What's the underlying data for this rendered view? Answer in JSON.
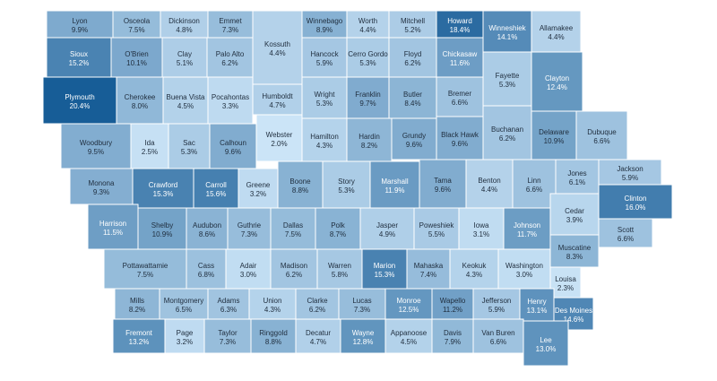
{
  "map": {
    "counties": [
      {
        "name": "Lyon",
        "value": "9.9%"
      },
      {
        "name": "Osceola",
        "value": "7.5%"
      },
      {
        "name": "Dickinson",
        "value": "4.8%"
      },
      {
        "name": "Emmet",
        "value": "7.3%"
      },
      {
        "name": "Kossuth",
        "value": "4.4%"
      },
      {
        "name": "Winnebago",
        "value": "8.9%"
      },
      {
        "name": "Worth",
        "value": "4.4%"
      },
      {
        "name": "Mitchell",
        "value": "5.2%"
      },
      {
        "name": "Howard",
        "value": "18.4%"
      },
      {
        "name": "Winneshiek",
        "value": "14.1%"
      },
      {
        "name": "Allamakee",
        "value": "4.4%"
      },
      {
        "name": "Sioux",
        "value": "15.2%"
      },
      {
        "name": "O'Brien",
        "value": "10.1%"
      },
      {
        "name": "Clay",
        "value": "5.1%"
      },
      {
        "name": "Palo Alto",
        "value": "6.2%"
      },
      {
        "name": "Hancock",
        "value": "5.9%"
      },
      {
        "name": "Cerro Gordo",
        "value": "5.3%"
      },
      {
        "name": "Floyd",
        "value": "6.2%"
      },
      {
        "name": "Chickasaw",
        "value": "11.6%"
      },
      {
        "name": "Fayette",
        "value": "5.3%"
      },
      {
        "name": "Clayton",
        "value": "12.4%"
      },
      {
        "name": "Plymouth",
        "value": "20.4%"
      },
      {
        "name": "Cherokee",
        "value": "8.0%"
      },
      {
        "name": "Buena Vista",
        "value": "4.5%"
      },
      {
        "name": "Pocahontas",
        "value": "3.3%"
      },
      {
        "name": "Humboldt",
        "value": "4.7%"
      },
      {
        "name": "Wright",
        "value": "5.3%"
      },
      {
        "name": "Franklin",
        "value": "9.7%"
      },
      {
        "name": "Butler",
        "value": "8.4%"
      },
      {
        "name": "Bremer",
        "value": "6.6%"
      },
      {
        "name": "Woodbury",
        "value": "9.5%"
      },
      {
        "name": "Ida",
        "value": "2.5%"
      },
      {
        "name": "Sac",
        "value": "5.3%"
      },
      {
        "name": "Calhoun",
        "value": "9.6%"
      },
      {
        "name": "Webster",
        "value": "2.0%"
      },
      {
        "name": "Hamilton",
        "value": "4.3%"
      },
      {
        "name": "Hardin",
        "value": "8.2%"
      },
      {
        "name": "Grundy",
        "value": "9.6%"
      },
      {
        "name": "Black Hawk",
        "value": "9.6%"
      },
      {
        "name": "Buchanan",
        "value": "6.2%"
      },
      {
        "name": "Delaware",
        "value": "10.9%"
      },
      {
        "name": "Dubuque",
        "value": "6.6%"
      },
      {
        "name": "Monona",
        "value": "9.3%"
      },
      {
        "name": "Crawford",
        "value": "15.3%"
      },
      {
        "name": "Carroll",
        "value": "15.6%"
      },
      {
        "name": "Greene",
        "value": "3.2%"
      },
      {
        "name": "Boone",
        "value": "8.8%"
      },
      {
        "name": "Story",
        "value": "5.3%"
      },
      {
        "name": "Marshall",
        "value": "11.9%"
      },
      {
        "name": "Tama",
        "value": "9.6%"
      },
      {
        "name": "Benton",
        "value": "4.4%"
      },
      {
        "name": "Linn",
        "value": "6.6%"
      },
      {
        "name": "Jones",
        "value": "6.1%"
      },
      {
        "name": "Jackson",
        "value": "5.9%"
      },
      {
        "name": "Clinton",
        "value": "16.0%"
      },
      {
        "name": "Harrison",
        "value": "11.5%"
      },
      {
        "name": "Shelby",
        "value": "10.9%"
      },
      {
        "name": "Audubon",
        "value": "8.6%"
      },
      {
        "name": "Guthrie",
        "value": "7.3%"
      },
      {
        "name": "Dallas",
        "value": "7.5%"
      },
      {
        "name": "Polk",
        "value": "8.7%"
      },
      {
        "name": "Jasper",
        "value": "4.9%"
      },
      {
        "name": "Poweshiek",
        "value": "5.5%"
      },
      {
        "name": "Iowa",
        "value": "3.1%"
      },
      {
        "name": "Johnson",
        "value": "11.7%"
      },
      {
        "name": "Cedar",
        "value": "3.9%"
      },
      {
        "name": "Scott",
        "value": "6.6%"
      },
      {
        "name": "Muscatine",
        "value": "8.3%"
      },
      {
        "name": "Pottawattamie",
        "value": "7.5%"
      },
      {
        "name": "Cass",
        "value": "6.8%"
      },
      {
        "name": "Adair",
        "value": "3.0%"
      },
      {
        "name": "Madison",
        "value": "6.2%"
      },
      {
        "name": "Warren",
        "value": "5.8%"
      },
      {
        "name": "Marion",
        "value": "15.3%"
      },
      {
        "name": "Mahaska",
        "value": "7.4%"
      },
      {
        "name": "Keokuk",
        "value": "4.3%"
      },
      {
        "name": "Washington",
        "value": "3.0%"
      },
      {
        "name": "Louisa",
        "value": "2.3%"
      },
      {
        "name": "Mills",
        "value": "8.2%"
      },
      {
        "name": "Montgomery",
        "value": "6.5%"
      },
      {
        "name": "Adams",
        "value": "6.3%"
      },
      {
        "name": "Union",
        "value": "4.3%"
      },
      {
        "name": "Clarke",
        "value": "6.2%"
      },
      {
        "name": "Lucas",
        "value": "7.3%"
      },
      {
        "name": "Monroe",
        "value": "12.5%"
      },
      {
        "name": "Wapello",
        "value": "11.2%"
      },
      {
        "name": "Jefferson",
        "value": "5.9%"
      },
      {
        "name": "Henry",
        "value": "13.1%"
      },
      {
        "name": "Des Moines",
        "value": "14.6%"
      },
      {
        "name": "Fremont",
        "value": "13.2%"
      },
      {
        "name": "Page",
        "value": "3.2%"
      },
      {
        "name": "Taylor",
        "value": "7.3%"
      },
      {
        "name": "Ringgold",
        "value": "8.8%"
      },
      {
        "name": "Decatur",
        "value": "4.7%"
      },
      {
        "name": "Wayne",
        "value": "12.8%"
      },
      {
        "name": "Appanoose",
        "value": "4.5%"
      },
      {
        "name": "Davis",
        "value": "7.9%"
      },
      {
        "name": "Van Buren",
        "value": "6.6%"
      },
      {
        "name": "Lee",
        "value": "13.0%"
      }
    ]
  }
}
